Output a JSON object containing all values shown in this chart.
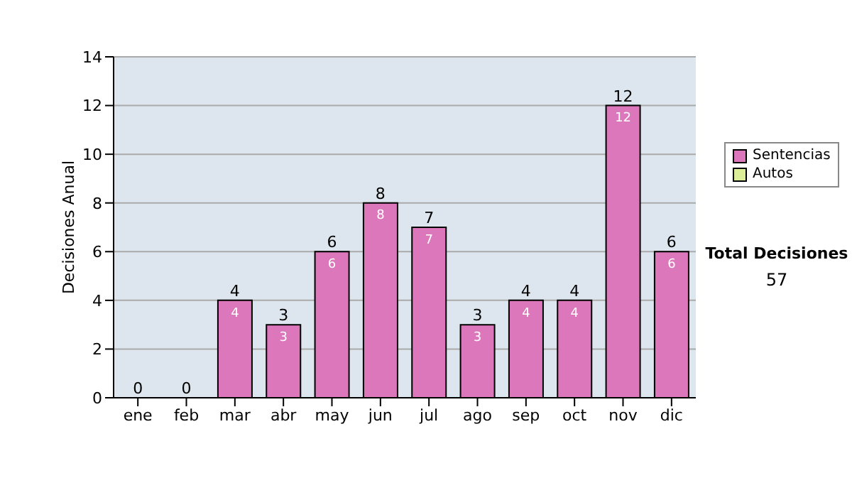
{
  "chart_data": {
    "type": "bar",
    "ylabel": "Decisiones Anual",
    "categories": [
      "ene",
      "feb",
      "mar",
      "abr",
      "may",
      "jun",
      "jul",
      "ago",
      "sep",
      "oct",
      "nov",
      "dic"
    ],
    "series": [
      {
        "name": "Sentencias",
        "color": "#dd77bb",
        "values": [
          0,
          0,
          4,
          3,
          6,
          8,
          7,
          3,
          4,
          4,
          12,
          6
        ],
        "value_labels": [
          null,
          null,
          "4",
          "3",
          "6",
          "8",
          "7",
          "3",
          "4",
          "4",
          "12",
          "6"
        ]
      },
      {
        "name": "Autos",
        "color": "#ddee99",
        "values": [
          0,
          0,
          0,
          0,
          0,
          0,
          0,
          0,
          0,
          0,
          0,
          0
        ]
      }
    ],
    "stacked": true,
    "totals": [
      "0",
      "0",
      "4",
      "3",
      "6",
      "8",
      "7",
      "3",
      "4",
      "4",
      "12",
      "6"
    ],
    "ylim": [
      0,
      14
    ],
    "yticks": [
      0,
      2,
      4,
      6,
      8,
      10,
      12,
      14
    ],
    "grid": "y",
    "legend": "right",
    "annotations": [
      "Total Decisiones",
      "57"
    ]
  }
}
